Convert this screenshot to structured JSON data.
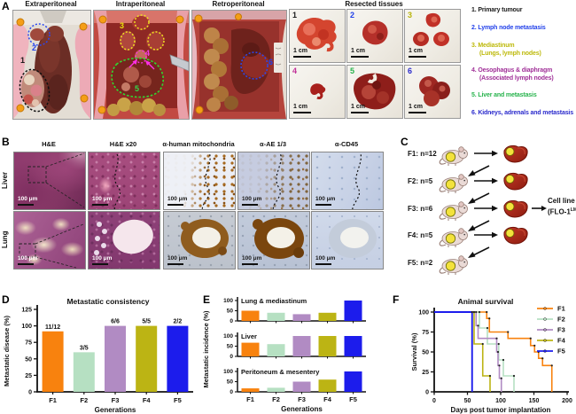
{
  "panel_labels": {
    "a": "A",
    "b": "B",
    "c": "C",
    "d": "D",
    "e": "E",
    "f": "F"
  },
  "panel_a": {
    "photo_titles": [
      "Extraperitoneal",
      "Intraperitoneal",
      "Retroperitoneal"
    ],
    "photos": [
      {
        "annotations": [
          {
            "n": "1",
            "color": "#1a1a1a"
          },
          {
            "n": "2",
            "color": "#2342ea"
          }
        ]
      },
      {
        "annotations": [
          {
            "n": "3",
            "color": "#e8e00a"
          },
          {
            "n": "4",
            "color": "#f03ce8"
          },
          {
            "n": "5",
            "color": "#35d84a"
          }
        ]
      },
      {
        "annotations": [
          {
            "n": "6",
            "color": "#2342ea"
          }
        ]
      }
    ],
    "resected": {
      "title": "Resected tissues",
      "scale_label": "1 cm",
      "tissues": [
        {
          "num": "1",
          "color": "#1a1a1a"
        },
        {
          "num": "2",
          "color": "#2342ea"
        },
        {
          "num": "3",
          "color": "#b8b40a"
        },
        {
          "num": "4",
          "color": "#c23098"
        },
        {
          "num": "5",
          "color": "#27b34c"
        },
        {
          "num": "6",
          "color": "#2a2acc"
        }
      ]
    },
    "legend": [
      {
        "text": "1. Primary tumour",
        "sub": "",
        "color": "#1a1a1a"
      },
      {
        "text": "2. Lymph node metastasis",
        "sub": "",
        "color": "#2342ea"
      },
      {
        "text": "3. Mediastinum",
        "sub": "(Lungs, lymph nodes)",
        "color": "#bdb90a"
      },
      {
        "text": "4. Oesophagus & diaphragm",
        "sub": "(Associated lymph nodes)",
        "color": "#a03098"
      },
      {
        "text": "5. Liver and metastasis",
        "sub": "",
        "color": "#27b34c"
      },
      {
        "text": "6. Kidneys, adrenals and metastasis",
        "sub": "",
        "color": "#2a2acc"
      }
    ]
  },
  "panel_b": {
    "col_headers": [
      "H&E",
      "H&E x20",
      "α-human mitochondria",
      "α-AE 1/3",
      "α-CD45"
    ],
    "row_labels": [
      "Liver",
      "Lung"
    ],
    "scale_label": "100 μm"
  },
  "panel_c": {
    "rows": [
      {
        "label": "F1: n=12",
        "has_liver": true
      },
      {
        "label": "F2: n=5",
        "has_liver": true
      },
      {
        "label": "F3: n=6",
        "has_liver": true
      },
      {
        "label": "F4: n=5",
        "has_liver": true
      },
      {
        "label": "F5: n=2",
        "has_liver": false
      }
    ],
    "cell_line": {
      "line1": "Cell line",
      "pre": "(FLO-1",
      "sup": "LM",
      "post": ")"
    }
  },
  "colors": {
    "f1": "#f8820e",
    "f2": "#b6e0c2",
    "f3": "#b18bc3",
    "f4": "#bcb414",
    "f5": "#1c1cec"
  },
  "chart_data": [
    {
      "id": "metastatic-consistency",
      "type": "bar",
      "title": "Metastatic consistency",
      "xlabel": "Generations",
      "ylabel": "Metastatic disease (%)",
      "categories": [
        "F1",
        "F2",
        "F3",
        "F4",
        "F5"
      ],
      "values": [
        91.7,
        60,
        100,
        100,
        100
      ],
      "bar_labels": [
        "11/12",
        "3/5",
        "6/6",
        "5/5",
        "2/2"
      ],
      "yticks": [
        0,
        25,
        50,
        75,
        100,
        125
      ],
      "ylim": [
        0,
        125
      ],
      "colors": [
        "#f8820e",
        "#b6e0c2",
        "#b18bc3",
        "#bcb414",
        "#1c1cec"
      ]
    },
    {
      "id": "metastatic-incidence",
      "type": "bar-multi",
      "ylabel": "Metastatic incidence (%)",
      "xlabel": "Generations",
      "categories": [
        "F1",
        "F2",
        "F3",
        "F4",
        "F5"
      ],
      "subplots": [
        {
          "title": "Lung & mediastinum",
          "values": [
            50,
            40,
            33,
            40,
            100
          ]
        },
        {
          "title": "Liver",
          "values": [
            67,
            60,
            100,
            100,
            100
          ]
        },
        {
          "title": "Peritoneum & mesentery",
          "values": [
            17,
            20,
            50,
            60,
            100
          ]
        }
      ],
      "yticks": [
        0,
        50,
        100
      ],
      "ylim": [
        0,
        100
      ],
      "colors": [
        "#f8820e",
        "#b6e0c2",
        "#b18bc3",
        "#bcb414",
        "#1c1cec"
      ]
    },
    {
      "id": "animal-survival",
      "type": "step-line",
      "title": "Animal survival",
      "xlabel": "Days post tumor implantation",
      "ylabel": "Survival (%)",
      "xticks": [
        0,
        50,
        100,
        150,
        200
      ],
      "yticks": [
        0,
        25,
        50,
        75,
        100
      ],
      "xlim": [
        0,
        200
      ],
      "ylim": [
        0,
        100
      ],
      "legend_position": "right",
      "series": [
        {
          "name": "F1",
          "color": "#f8820e",
          "points": [
            [
              0,
              100
            ],
            [
              79,
              100
            ],
            [
              79,
              92
            ],
            [
              83,
              92
            ],
            [
              83,
              75
            ],
            [
              111,
              75
            ],
            [
              111,
              67
            ],
            [
              145,
              67
            ],
            [
              145,
              58
            ],
            [
              151,
              58
            ],
            [
              151,
              50
            ],
            [
              157,
              50
            ],
            [
              157,
              42
            ],
            [
              163,
              42
            ],
            [
              163,
              33
            ],
            [
              177,
              33
            ],
            [
              177,
              0
            ]
          ]
        },
        {
          "name": "F2",
          "color": "#b6e0c2",
          "points": [
            [
              0,
              100
            ],
            [
              68,
              100
            ],
            [
              68,
              80
            ],
            [
              80,
              80
            ],
            [
              80,
              60
            ],
            [
              97,
              60
            ],
            [
              97,
              40
            ],
            [
              104,
              40
            ],
            [
              104,
              20
            ],
            [
              120,
              20
            ],
            [
              120,
              0
            ]
          ]
        },
        {
          "name": "F3",
          "color": "#b18bc3",
          "points": [
            [
              0,
              100
            ],
            [
              63,
              100
            ],
            [
              63,
              83
            ],
            [
              66,
              83
            ],
            [
              66,
              67
            ],
            [
              94,
              67
            ],
            [
              94,
              50
            ],
            [
              96,
              50
            ],
            [
              96,
              33
            ],
            [
              98,
              33
            ],
            [
              98,
              17
            ],
            [
              101,
              17
            ],
            [
              101,
              0
            ]
          ]
        },
        {
          "name": "F4",
          "color": "#bcb414",
          "points": [
            [
              0,
              100
            ],
            [
              60,
              100
            ],
            [
              60,
              60
            ],
            [
              73,
              60
            ],
            [
              73,
              20
            ],
            [
              84,
              20
            ],
            [
              84,
              0
            ]
          ]
        },
        {
          "name": "F5",
          "color": "#1c1cec",
          "points": [
            [
              0,
              100
            ],
            [
              57,
              100
            ],
            [
              57,
              0
            ]
          ]
        }
      ]
    }
  ]
}
